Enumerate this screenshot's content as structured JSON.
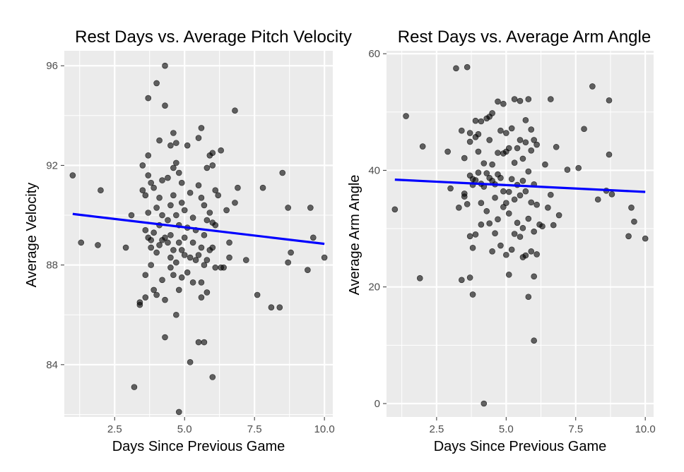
{
  "chart_data": [
    {
      "type": "scatter",
      "title": "Rest Days vs. Average Pitch Velocity",
      "xlabel": "Days Since Previous Game",
      "ylabel": "Average Velocity",
      "xlim": [
        0.7,
        10.3
      ],
      "ylim": [
        81.9,
        96.6
      ],
      "x_ticks": [
        2.5,
        5.0,
        7.5,
        10.0
      ],
      "x_tick_labels": [
        "2.5",
        "5.0",
        "7.5",
        "10.0"
      ],
      "y_ticks": [
        84,
        88,
        92,
        96
      ],
      "y_tick_labels": [
        "84",
        "88",
        "92",
        "96"
      ],
      "grid": true,
      "point_color": "#000000",
      "trend_line": {
        "type": "linear",
        "color": "#0000ff",
        "x": [
          1.0,
          10.0
        ],
        "y": [
          90.05,
          88.85
        ]
      },
      "points": [
        [
          1.0,
          91.6
        ],
        [
          1.3,
          88.9
        ],
        [
          1.9,
          88.8
        ],
        [
          2.0,
          91.0
        ],
        [
          2.9,
          88.7
        ],
        [
          3.1,
          90.0
        ],
        [
          3.2,
          83.1
        ],
        [
          3.4,
          86.5
        ],
        [
          3.4,
          86.4
        ],
        [
          3.5,
          92.0
        ],
        [
          3.5,
          91.0
        ],
        [
          3.6,
          90.8
        ],
        [
          3.6,
          89.4
        ],
        [
          3.6,
          87.6
        ],
        [
          3.6,
          86.7
        ],
        [
          3.7,
          94.7
        ],
        [
          3.7,
          92.4
        ],
        [
          3.7,
          91.6
        ],
        [
          3.7,
          90.1
        ],
        [
          3.7,
          89.1
        ],
        [
          3.8,
          91.3
        ],
        [
          3.8,
          89.0
        ],
        [
          3.8,
          88.7
        ],
        [
          3.8,
          88.0
        ],
        [
          3.9,
          91.1
        ],
        [
          3.9,
          89.3
        ],
        [
          3.9,
          87.0
        ],
        [
          4.0,
          95.3
        ],
        [
          4.0,
          90.3
        ],
        [
          4.0,
          88.5
        ],
        [
          4.0,
          86.8
        ],
        [
          4.1,
          93.0
        ],
        [
          4.1,
          90.7
        ],
        [
          4.1,
          89.6
        ],
        [
          4.1,
          88.8
        ],
        [
          4.2,
          91.4
        ],
        [
          4.2,
          90.0
        ],
        [
          4.2,
          89.0
        ],
        [
          4.2,
          87.4
        ],
        [
          4.3,
          96.0
        ],
        [
          4.3,
          94.4
        ],
        [
          4.3,
          89.1
        ],
        [
          4.3,
          86.6
        ],
        [
          4.3,
          85.1
        ],
        [
          4.4,
          91.5
        ],
        [
          4.4,
          89.8
        ],
        [
          4.4,
          88.9
        ],
        [
          4.5,
          92.8
        ],
        [
          4.5,
          90.4
        ],
        [
          4.5,
          89.2
        ],
        [
          4.5,
          88.3
        ],
        [
          4.5,
          87.9
        ],
        [
          4.6,
          93.3
        ],
        [
          4.6,
          91.9
        ],
        [
          4.6,
          90.8
        ],
        [
          4.6,
          88.6
        ],
        [
          4.6,
          87.6
        ],
        [
          4.7,
          92.9
        ],
        [
          4.7,
          92.1
        ],
        [
          4.7,
          90.0
        ],
        [
          4.7,
          88.1
        ],
        [
          4.7,
          86.0
        ],
        [
          4.8,
          91.7
        ],
        [
          4.8,
          89.6
        ],
        [
          4.8,
          88.9
        ],
        [
          4.8,
          87.0
        ],
        [
          4.8,
          82.1
        ],
        [
          4.9,
          91.3
        ],
        [
          4.9,
          90.5
        ],
        [
          4.9,
          88.6
        ],
        [
          4.9,
          87.5
        ],
        [
          5.0,
          90.2
        ],
        [
          5.0,
          89.1
        ],
        [
          5.0,
          88.4
        ],
        [
          5.1,
          92.8
        ],
        [
          5.1,
          89.5
        ],
        [
          5.1,
          87.7
        ],
        [
          5.2,
          90.9
        ],
        [
          5.2,
          88.3
        ],
        [
          5.2,
          84.1
        ],
        [
          5.3,
          89.9
        ],
        [
          5.3,
          88.9
        ],
        [
          5.3,
          87.3
        ],
        [
          5.4,
          89.4
        ],
        [
          5.4,
          88.2
        ],
        [
          5.5,
          91.2
        ],
        [
          5.5,
          93.1
        ],
        [
          5.5,
          88.4
        ],
        [
          5.5,
          84.9
        ],
        [
          5.6,
          93.5
        ],
        [
          5.6,
          90.7
        ],
        [
          5.6,
          88.7
        ],
        [
          5.6,
          87.3
        ],
        [
          5.6,
          86.7
        ],
        [
          5.7,
          90.4
        ],
        [
          5.7,
          89.2
        ],
        [
          5.7,
          88.0
        ],
        [
          5.7,
          84.9
        ],
        [
          5.8,
          91.9
        ],
        [
          5.8,
          89.8
        ],
        [
          5.8,
          88.2
        ],
        [
          5.8,
          86.9
        ],
        [
          5.9,
          92.4
        ],
        [
          5.9,
          90.1
        ],
        [
          5.9,
          88.6
        ],
        [
          6.0,
          92.5
        ],
        [
          6.0,
          92.0
        ],
        [
          6.0,
          89.7
        ],
        [
          6.0,
          88.7
        ],
        [
          6.0,
          83.5
        ],
        [
          6.1,
          91.0
        ],
        [
          6.1,
          89.6
        ],
        [
          6.1,
          87.9
        ],
        [
          6.2,
          90.8
        ],
        [
          6.3,
          92.6
        ],
        [
          6.3,
          87.9
        ],
        [
          6.4,
          87.9
        ],
        [
          6.5,
          90.2
        ],
        [
          6.6,
          88.9
        ],
        [
          6.6,
          88.3
        ],
        [
          6.8,
          94.2
        ],
        [
          6.8,
          90.5
        ],
        [
          6.9,
          91.1
        ],
        [
          7.2,
          88.2
        ],
        [
          7.6,
          86.8
        ],
        [
          7.8,
          91.1
        ],
        [
          8.1,
          86.3
        ],
        [
          8.4,
          86.3
        ],
        [
          8.5,
          91.7
        ],
        [
          8.7,
          90.3
        ],
        [
          8.7,
          88.1
        ],
        [
          8.8,
          88.5
        ],
        [
          9.4,
          87.8
        ],
        [
          9.5,
          90.3
        ],
        [
          9.6,
          89.1
        ],
        [
          10.0,
          88.3
        ]
      ]
    },
    {
      "type": "scatter",
      "title": "Rest Days vs. Average Arm Angle",
      "xlabel": "Days Since Previous Game",
      "ylabel": "Average Arm Angle",
      "xlim": [
        0.7,
        10.3
      ],
      "ylim": [
        -2.3,
        60.5
      ],
      "x_ticks": [
        2.5,
        5.0,
        7.5,
        10.0
      ],
      "x_tick_labels": [
        "2.5",
        "5.0",
        "7.5",
        "10.0"
      ],
      "y_ticks": [
        0,
        20,
        40,
        60
      ],
      "y_tick_labels": [
        "0",
        "20",
        "40",
        "60"
      ],
      "grid": true,
      "point_color": "#000000",
      "trend_line": {
        "type": "linear",
        "color": "#0000ff",
        "x": [
          1.0,
          10.0
        ],
        "y": [
          38.4,
          36.3
        ]
      },
      "points": [
        [
          1.0,
          33.3
        ],
        [
          1.4,
          49.3
        ],
        [
          1.9,
          21.5
        ],
        [
          2.0,
          44.1
        ],
        [
          2.9,
          43.2
        ],
        [
          3.0,
          36.9
        ],
        [
          3.2,
          57.5
        ],
        [
          3.3,
          33.6
        ],
        [
          3.4,
          21.2
        ],
        [
          3.4,
          46.8
        ],
        [
          3.5,
          35.5
        ],
        [
          3.5,
          36.0
        ],
        [
          3.5,
          42.1
        ],
        [
          3.6,
          34.2
        ],
        [
          3.6,
          57.7
        ],
        [
          3.7,
          46.4
        ],
        [
          3.7,
          44.9
        ],
        [
          3.7,
          39.1
        ],
        [
          3.7,
          28.7
        ],
        [
          3.7,
          21.6
        ],
        [
          3.8,
          38.5
        ],
        [
          3.8,
          37.5
        ],
        [
          3.8,
          26.7
        ],
        [
          3.8,
          18.7
        ],
        [
          3.9,
          48.5
        ],
        [
          3.9,
          45.7
        ],
        [
          3.9,
          38.3
        ],
        [
          3.9,
          29.0
        ],
        [
          4.0,
          46.2
        ],
        [
          4.0,
          43.2
        ],
        [
          4.0,
          39.6
        ],
        [
          4.1,
          48.4
        ],
        [
          4.1,
          37.7
        ],
        [
          4.1,
          34.4
        ],
        [
          4.1,
          30.7
        ],
        [
          4.2,
          41.2
        ],
        [
          4.2,
          37.2
        ],
        [
          4.2,
          0.0
        ],
        [
          4.3,
          48.9
        ],
        [
          4.3,
          39.5
        ],
        [
          4.3,
          33.0
        ],
        [
          4.4,
          49.2
        ],
        [
          4.4,
          45.2
        ],
        [
          4.4,
          38.7
        ],
        [
          4.4,
          30.9
        ],
        [
          4.5,
          49.8
        ],
        [
          4.5,
          41.0
        ],
        [
          4.5,
          38.2
        ],
        [
          4.5,
          26.1
        ],
        [
          4.6,
          37.6
        ],
        [
          4.6,
          35.3
        ],
        [
          4.6,
          29.2
        ],
        [
          4.7,
          51.8
        ],
        [
          4.7,
          43.0
        ],
        [
          4.7,
          39.3
        ],
        [
          4.7,
          31.6
        ],
        [
          4.8,
          46.8
        ],
        [
          4.8,
          38.7
        ],
        [
          4.8,
          27.1
        ],
        [
          4.9,
          51.4
        ],
        [
          4.9,
          42.9
        ],
        [
          4.9,
          36.4
        ],
        [
          4.9,
          33.7
        ],
        [
          5.0,
          46.4
        ],
        [
          5.0,
          43.2
        ],
        [
          5.0,
          34.4
        ],
        [
          5.0,
          25.5
        ],
        [
          5.1,
          43.8
        ],
        [
          5.1,
          36.3
        ],
        [
          5.1,
          32.6
        ],
        [
          5.1,
          22.1
        ],
        [
          5.2,
          47.2
        ],
        [
          5.2,
          38.5
        ],
        [
          5.2,
          26.4
        ],
        [
          5.3,
          52.2
        ],
        [
          5.3,
          41.3
        ],
        [
          5.3,
          35.0
        ],
        [
          5.3,
          29.1
        ],
        [
          5.4,
          43.8
        ],
        [
          5.4,
          37.5
        ],
        [
          5.4,
          31.0
        ],
        [
          5.5,
          51.9
        ],
        [
          5.5,
          45.2
        ],
        [
          5.5,
          35.7
        ],
        [
          5.5,
          28.6
        ],
        [
          5.6,
          42.0
        ],
        [
          5.6,
          38.2
        ],
        [
          5.6,
          30.1
        ],
        [
          5.6,
          25.1
        ],
        [
          5.7,
          48.6
        ],
        [
          5.7,
          44.8
        ],
        [
          5.7,
          36.4
        ],
        [
          5.7,
          25.4
        ],
        [
          5.8,
          52.2
        ],
        [
          5.8,
          39.8
        ],
        [
          5.8,
          31.7
        ],
        [
          5.8,
          18.3
        ],
        [
          5.9,
          47.0
        ],
        [
          5.9,
          43.4
        ],
        [
          5.9,
          34.5
        ],
        [
          5.9,
          26.1
        ],
        [
          6.0,
          45.2
        ],
        [
          6.0,
          37.6
        ],
        [
          6.0,
          29.5
        ],
        [
          6.0,
          21.8
        ],
        [
          6.0,
          10.8
        ],
        [
          6.1,
          44.4
        ],
        [
          6.1,
          34.1
        ],
        [
          6.1,
          25.6
        ],
        [
          6.2,
          30.7
        ],
        [
          6.3,
          30.4
        ],
        [
          6.4,
          41.0
        ],
        [
          6.5,
          33.6
        ],
        [
          6.6,
          35.8
        ],
        [
          6.6,
          52.2
        ],
        [
          6.7,
          30.6
        ],
        [
          6.8,
          44.0
        ],
        [
          6.9,
          32.3
        ],
        [
          7.2,
          40.1
        ],
        [
          7.6,
          40.4
        ],
        [
          7.8,
          47.1
        ],
        [
          8.1,
          54.4
        ],
        [
          8.3,
          35.0
        ],
        [
          8.6,
          36.5
        ],
        [
          8.7,
          52.0
        ],
        [
          8.7,
          42.7
        ],
        [
          8.8,
          35.9
        ],
        [
          9.4,
          28.7
        ],
        [
          9.5,
          33.6
        ],
        [
          9.6,
          31.2
        ],
        [
          10.0,
          28.3
        ]
      ]
    }
  ]
}
